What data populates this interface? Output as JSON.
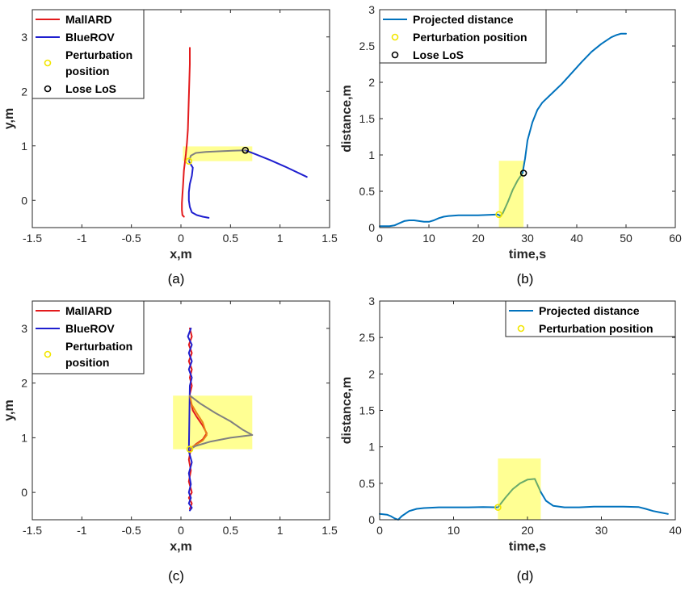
{
  "chart_data": [
    {
      "panel": "(a)",
      "type": "line",
      "xlabel": "x,m",
      "ylabel": "y,m",
      "xlim": [
        -1.5,
        1.5
      ],
      "ylim": [
        -0.5,
        3.5
      ],
      "xticks": [
        -1.5,
        -1,
        -0.5,
        0,
        0.5,
        1,
        1.5
      ],
      "xtick_labels": [
        "-1.5",
        "-1",
        "-0.5",
        "0",
        "0.5",
        "1",
        "1.5"
      ],
      "yticks": [
        0,
        1,
        2,
        3
      ],
      "ytick_labels": [
        "0",
        "1",
        "2",
        "3"
      ],
      "legend": {
        "placement": "top-left",
        "entries": [
          {
            "label": "MallARD",
            "kind": "line",
            "color": "#e31a1c"
          },
          {
            "label": "BlueROV",
            "kind": "line",
            "color": "#1f1fcf"
          },
          {
            "label": "Perturbation\nposition",
            "kind": "marker",
            "color": "#f2e600"
          },
          {
            "label": "Lose LoS",
            "kind": "marker",
            "color": "#000000"
          }
        ]
      },
      "highlight": {
        "x": [
          0.02,
          0.72
        ],
        "y": [
          0.72,
          0.99
        ],
        "color": "#ffff80"
      },
      "series": [
        {
          "name": "MallARD",
          "color": "#e31a1c",
          "x": [
            0.09,
            0.09,
            0.085,
            0.08,
            0.075,
            0.07,
            0.06,
            0.05,
            0.04,
            0.03,
            0.025,
            0.02,
            0.015,
            0.01,
            0.01,
            0.015,
            0.03
          ],
          "y": [
            2.8,
            2.5,
            2.2,
            1.9,
            1.6,
            1.3,
            1.05,
            0.85,
            0.7,
            0.55,
            0.4,
            0.25,
            0.1,
            -0.05,
            -0.18,
            -0.27,
            -0.3
          ]
        },
        {
          "name": "BlueROV",
          "color": "#1f1fcf",
          "x": [
            0.08,
            0.12,
            0.11,
            0.09,
            0.08,
            0.08,
            0.09,
            0.11,
            0.16,
            0.22,
            0.28
          ],
          "y": [
            0.72,
            0.6,
            0.45,
            0.3,
            0.15,
            0.0,
            -0.12,
            -0.22,
            -0.27,
            -0.3,
            -0.32
          ]
        },
        {
          "name": "BlueROV",
          "color": "#1f1fcf",
          "x": [
            0.65,
            0.75,
            0.9,
            1.05,
            1.27
          ],
          "y": [
            0.92,
            0.85,
            0.74,
            0.62,
            0.43
          ]
        },
        {
          "name": "Perturbation segment",
          "color": "#808080",
          "x": [
            0.08,
            0.1,
            0.15,
            0.25,
            0.38,
            0.52,
            0.65
          ],
          "y": [
            0.72,
            0.82,
            0.87,
            0.89,
            0.9,
            0.91,
            0.92
          ]
        }
      ],
      "markers": [
        {
          "kind": "perturbation",
          "x": [
            0.08
          ],
          "y": [
            0.72
          ],
          "color": "#f2e600"
        },
        {
          "kind": "lose_los",
          "x": [
            0.65
          ],
          "y": [
            0.92
          ],
          "color": "#000000"
        }
      ]
    },
    {
      "panel": "(b)",
      "type": "line",
      "xlabel": "time,s",
      "ylabel": "distance,m",
      "xlim": [
        0,
        60
      ],
      "ylim": [
        0,
        3
      ],
      "xticks": [
        0,
        10,
        20,
        30,
        40,
        50,
        60
      ],
      "xtick_labels": [
        "0",
        "10",
        "20",
        "30",
        "40",
        "50",
        "60"
      ],
      "yticks": [
        0,
        0.5,
        1,
        1.5,
        2,
        2.5,
        3
      ],
      "ytick_labels": [
        "0",
        "0.5",
        "1",
        "1.5",
        "2",
        "2.5",
        "3"
      ],
      "legend": {
        "placement": "top-left",
        "entries": [
          {
            "label": "Projected distance",
            "kind": "line",
            "color": "#0072bd"
          },
          {
            "label": "Perturbation position",
            "kind": "marker",
            "color": "#f2e600"
          },
          {
            "label": "Lose LoS",
            "kind": "marker",
            "color": "#000000"
          }
        ]
      },
      "highlight": {
        "x": [
          24.2,
          29.2
        ],
        "y": [
          0,
          0.92
        ],
        "color": "#ffff80"
      },
      "series": [
        {
          "name": "Projected distance",
          "color": "#0072bd",
          "x": [
            0,
            2,
            3,
            4,
            5,
            6,
            7,
            8,
            9,
            10,
            11,
            12,
            13,
            14,
            16,
            18,
            20,
            22,
            24,
            24.5
          ],
          "y": [
            0.02,
            0.02,
            0.03,
            0.06,
            0.09,
            0.1,
            0.1,
            0.09,
            0.08,
            0.08,
            0.1,
            0.13,
            0.15,
            0.16,
            0.17,
            0.17,
            0.17,
            0.175,
            0.18,
            0.16
          ]
        },
        {
          "name": "Perturbation segment",
          "color": "#6aaa6a",
          "x": [
            24.5,
            25,
            26,
            27,
            28,
            29
          ],
          "y": [
            0.16,
            0.2,
            0.35,
            0.52,
            0.65,
            0.75
          ]
        },
        {
          "name": "Projected distance",
          "color": "#0072bd",
          "x": [
            29,
            29.5,
            30,
            31,
            32,
            33,
            35,
            37,
            39,
            41,
            43,
            45,
            47,
            48,
            49,
            50
          ],
          "y": [
            0.75,
            0.95,
            1.2,
            1.45,
            1.62,
            1.72,
            1.85,
            1.98,
            2.13,
            2.28,
            2.42,
            2.53,
            2.62,
            2.65,
            2.67,
            2.67
          ]
        }
      ],
      "markers": [
        {
          "kind": "perturbation",
          "x": [
            24.2
          ],
          "y": [
            0.18
          ],
          "color": "#f2e600"
        },
        {
          "kind": "lose_los",
          "x": [
            29.2
          ],
          "y": [
            0.75
          ],
          "color": "#000000"
        }
      ]
    },
    {
      "panel": "(c)",
      "type": "line",
      "xlabel": "x,m",
      "ylabel": "y,m",
      "xlim": [
        -1.5,
        1.5
      ],
      "ylim": [
        -0.5,
        3.5
      ],
      "xticks": [
        -1.5,
        -1,
        -0.5,
        0,
        0.5,
        1,
        1.5
      ],
      "xtick_labels": [
        "-1.5",
        "-1",
        "-0.5",
        "0",
        "0.5",
        "1",
        "1.5"
      ],
      "yticks": [
        0,
        1,
        2,
        3
      ],
      "ytick_labels": [
        "0",
        "1",
        "2",
        "3"
      ],
      "legend": {
        "placement": "top-left",
        "entries": [
          {
            "label": "MallARD",
            "kind": "line",
            "color": "#e31a1c"
          },
          {
            "label": "BlueROV",
            "kind": "line",
            "color": "#1f1fcf"
          },
          {
            "label": "Perturbation\nposition",
            "kind": "marker",
            "color": "#f2e600"
          }
        ]
      },
      "highlight": {
        "x": [
          -0.08,
          0.72
        ],
        "y": [
          0.79,
          1.77
        ],
        "color": "#ffff80"
      },
      "series": [
        {
          "name": "MallARD",
          "color": "#e31a1c",
          "x": [
            0.09,
            0.11,
            0.08,
            0.11,
            0.08,
            0.11,
            0.09,
            0.11,
            0.09,
            0.1,
            0.12,
            0.16,
            0.22,
            0.26,
            0.22,
            0.15,
            0.1,
            0.08,
            0.1,
            0.08,
            0.11,
            0.08,
            0.11,
            0.09
          ],
          "y": [
            3.0,
            2.85,
            2.7,
            2.55,
            2.4,
            2.25,
            2.1,
            1.95,
            1.8,
            1.65,
            1.5,
            1.38,
            1.22,
            1.08,
            0.97,
            0.88,
            0.8,
            0.6,
            0.4,
            0.2,
            0.0,
            -0.1,
            -0.2,
            -0.3
          ]
        },
        {
          "name": "BlueROV",
          "color": "#1f1fcf",
          "x": [
            0.1,
            0.07,
            0.11,
            0.08,
            0.11,
            0.08,
            0.11,
            0.09,
            0.08,
            0.11,
            0.08,
            0.1,
            0.08,
            0.1,
            0.08,
            0.11,
            0.09
          ],
          "y": [
            3.0,
            2.85,
            2.7,
            2.55,
            2.4,
            2.25,
            2.1,
            1.95,
            0.75,
            0.55,
            0.35,
            0.15,
            0.0,
            -0.1,
            -0.2,
            -0.28,
            -0.33
          ]
        },
        {
          "name": "Perturbation segment",
          "color": "#e8841a",
          "x": [
            0.09,
            0.11,
            0.16,
            0.22,
            0.26,
            0.22,
            0.15,
            0.1,
            0.09
          ],
          "y": [
            1.77,
            1.6,
            1.45,
            1.28,
            1.05,
            0.95,
            0.87,
            0.82,
            0.79
          ]
        },
        {
          "name": "Perturbation segment",
          "color": "#808080",
          "x": [
            0.09,
            0.2,
            0.35,
            0.5,
            0.62,
            0.72,
            0.5,
            0.3,
            0.15,
            0.09
          ],
          "y": [
            1.77,
            1.62,
            1.45,
            1.3,
            1.15,
            1.05,
            1.0,
            0.93,
            0.85,
            0.79
          ]
        }
      ],
      "markers": [
        {
          "kind": "perturbation",
          "x": [
            0.09
          ],
          "y": [
            0.79
          ],
          "color": "#f2e600"
        }
      ]
    },
    {
      "panel": "(d)",
      "type": "line",
      "xlabel": "time,s",
      "ylabel": "distance,m",
      "xlim": [
        0,
        40
      ],
      "ylim": [
        0,
        3
      ],
      "xticks": [
        0,
        10,
        20,
        30,
        40
      ],
      "xtick_labels": [
        "0",
        "10",
        "20",
        "30",
        "40"
      ],
      "yticks": [
        0,
        0.5,
        1,
        1.5,
        2,
        2.5,
        3
      ],
      "ytick_labels": [
        "0",
        "0.5",
        "1",
        "1.5",
        "2",
        "2.5",
        "3"
      ],
      "legend": {
        "placement": "top-right",
        "entries": [
          {
            "label": "Projected distance",
            "kind": "line",
            "color": "#0072bd"
          },
          {
            "label": "Perturbation position",
            "kind": "marker",
            "color": "#f2e600"
          }
        ]
      },
      "highlight": {
        "x": [
          16.0,
          21.8
        ],
        "y": [
          0,
          0.84
        ],
        "color": "#ffff80"
      },
      "series": [
        {
          "name": "Projected distance",
          "color": "#0072bd",
          "x": [
            0,
            1,
            1.5,
            2,
            2.5,
            3,
            4,
            5,
            6,
            8,
            10,
            12,
            14,
            16
          ],
          "y": [
            0.08,
            0.07,
            0.05,
            0.02,
            0.0,
            0.05,
            0.12,
            0.15,
            0.16,
            0.17,
            0.17,
            0.17,
            0.175,
            0.17
          ]
        },
        {
          "name": "Perturbation segment",
          "color": "#6aaa6a",
          "x": [
            16,
            17,
            18,
            19,
            20,
            21,
            21.8
          ],
          "y": [
            0.17,
            0.3,
            0.42,
            0.5,
            0.55,
            0.56,
            0.38
          ]
        },
        {
          "name": "Projected distance",
          "color": "#0072bd",
          "x": [
            21.8,
            22.5,
            23.5,
            25,
            27,
            29,
            31,
            33,
            35,
            36,
            37,
            38,
            39
          ],
          "y": [
            0.38,
            0.26,
            0.19,
            0.17,
            0.17,
            0.18,
            0.18,
            0.18,
            0.175,
            0.15,
            0.12,
            0.1,
            0.08
          ]
        }
      ],
      "markers": [
        {
          "kind": "perturbation",
          "x": [
            16.0
          ],
          "y": [
            0.17
          ],
          "color": "#f2e600"
        }
      ]
    }
  ],
  "panels": [
    {
      "id": "a",
      "caption": "(a)"
    },
    {
      "id": "b",
      "caption": "(b)"
    },
    {
      "id": "c",
      "caption": "(c)"
    },
    {
      "id": "d",
      "caption": "(d)"
    }
  ]
}
